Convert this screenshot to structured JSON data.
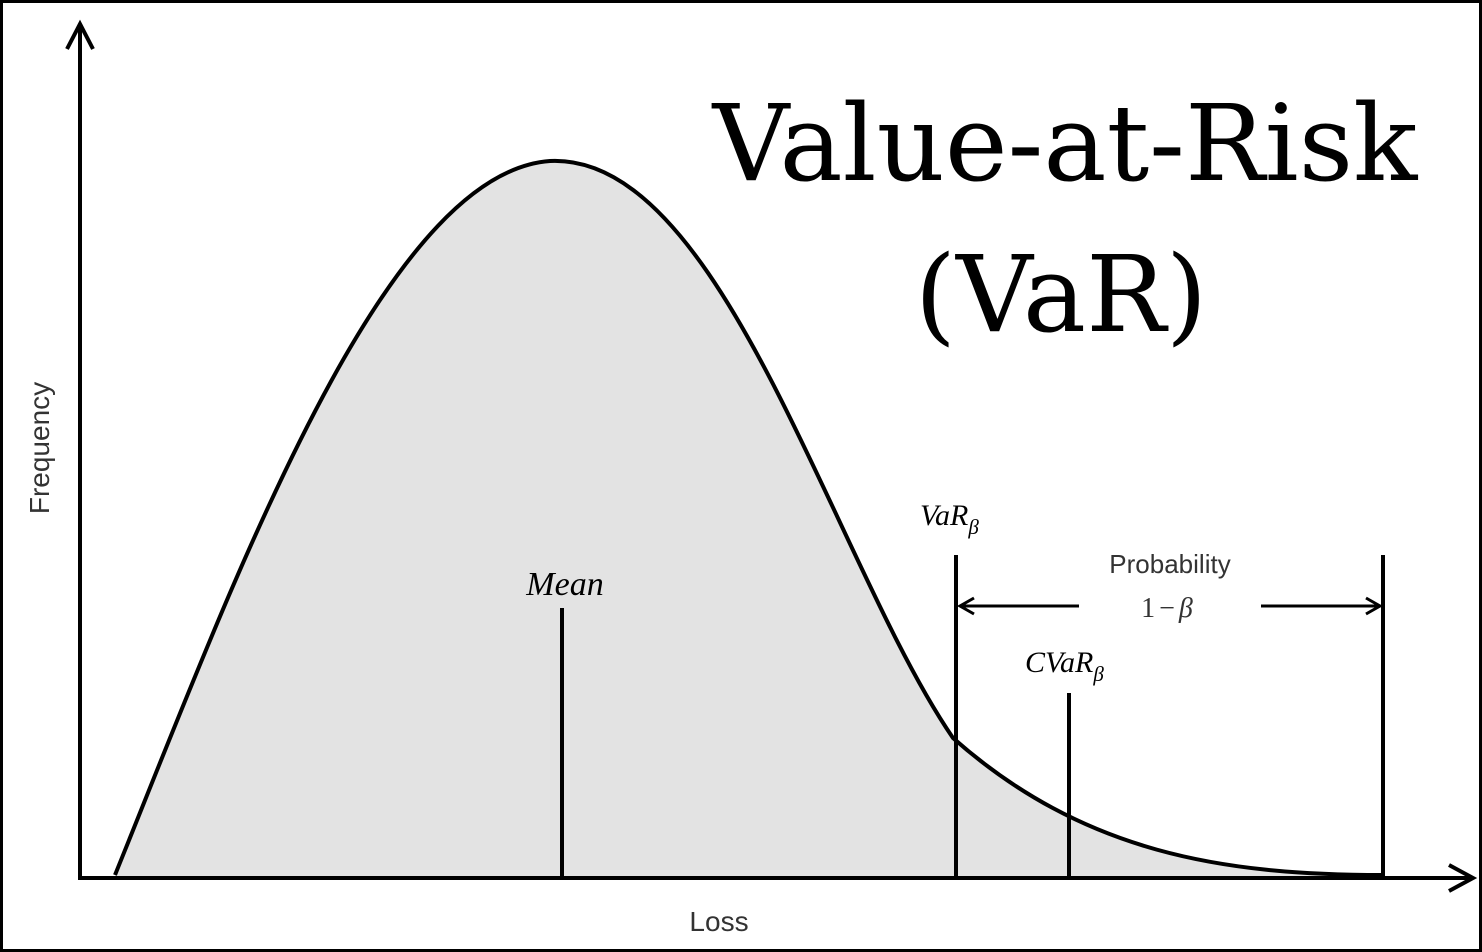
{
  "title": {
    "line1": "Value-at-Risk",
    "line2": "(VaR)"
  },
  "axes": {
    "x_label": "Loss",
    "y_label": "Frequency"
  },
  "markers": {
    "mean": {
      "label": "Mean"
    },
    "var": {
      "label": "VaR",
      "subscript": "β"
    },
    "cvar": {
      "label": "CVaR",
      "subscript": "β"
    }
  },
  "probability": {
    "label": "Probability",
    "expression_one": "1",
    "expression_minus": "−",
    "expression_beta": "β"
  },
  "colors": {
    "background": "#ffffff",
    "frame": "#000000",
    "curve_fill": "#e3e3e3",
    "ink": "#000000",
    "label_gray": "#333333"
  }
}
